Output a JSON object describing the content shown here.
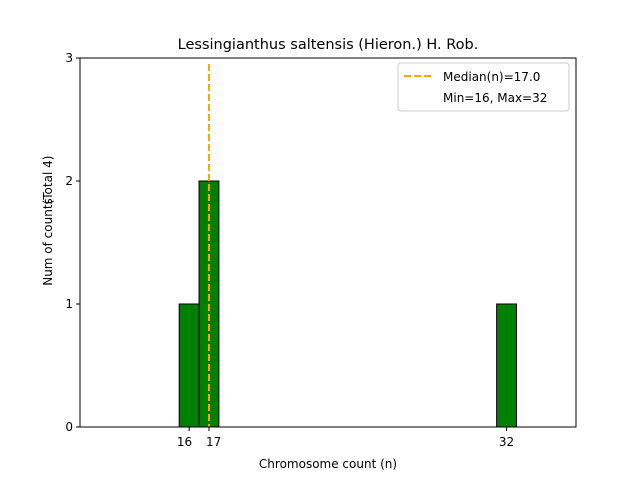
{
  "chart_data": {
    "type": "bar",
    "title": "Lessingianthus saltensis (Hieron.) H. Rob.",
    "xlabel": "Chromosome count (n)",
    "ylabel": "Num of counts",
    "ylabel_secondary": "(Total 4)",
    "x_ticks": [
      16,
      17,
      32
    ],
    "y_ticks": [
      0,
      1,
      2,
      3
    ],
    "xlim": [
      10.5,
      35.5
    ],
    "ylim": [
      0,
      3
    ],
    "bars": [
      {
        "x": 16,
        "count": 1
      },
      {
        "x": 17,
        "count": 2
      },
      {
        "x": 32,
        "count": 1
      }
    ],
    "bar_color": "#008000",
    "median_line": {
      "value": 17.0,
      "color": "#FFA500",
      "label": "Median(n)=17.0"
    },
    "legend": {
      "position": "top-right",
      "entries": [
        "Median(n)=17.0",
        "Min=16, Max=32"
      ]
    },
    "grid": false
  }
}
